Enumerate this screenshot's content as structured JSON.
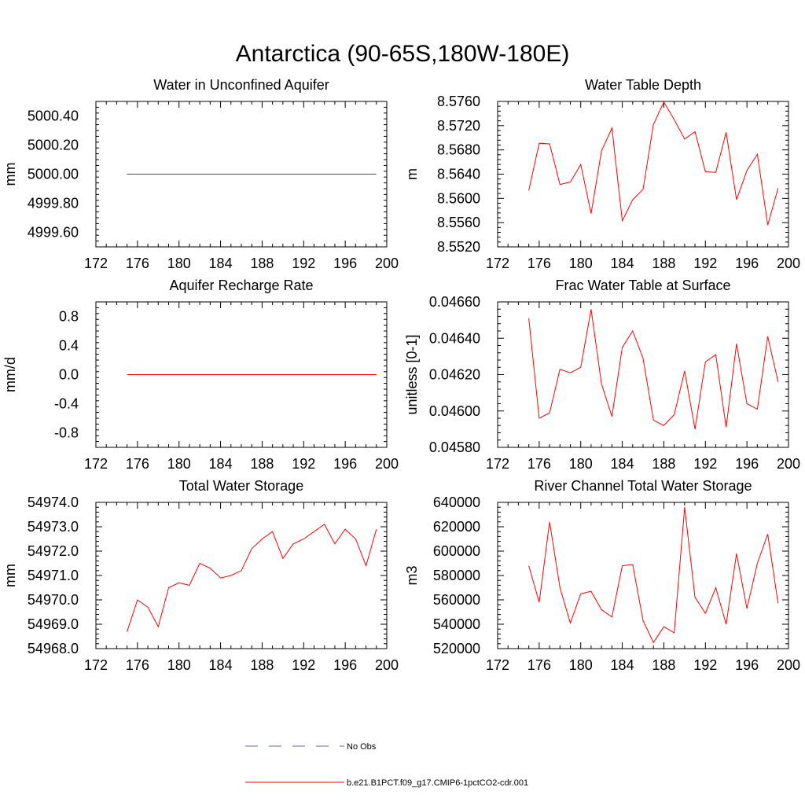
{
  "figure": {
    "title": "Antarctica (90-65S,180W-180E)",
    "legend": [
      {
        "label": "No Obs",
        "color": "#5a6bc0",
        "dash": true
      },
      {
        "label": "b.e21.B1PCT.f09_g17.CMIP6-1pctCO2-cdr.001",
        "color": "#ff0000",
        "dash": false
      }
    ]
  },
  "chart_data": [
    {
      "type": "line",
      "title": "Water in Unconfined Aquifer",
      "xlabel": "",
      "ylabel": "mm",
      "xlim": [
        172,
        200
      ],
      "ylim": [
        4999.5,
        5000.5
      ],
      "xticks": [
        172,
        176,
        180,
        184,
        188,
        192,
        196,
        200
      ],
      "yticks": [
        4999.6,
        4999.8,
        5000.0,
        5000.2,
        5000.4
      ],
      "ytick_labels": [
        "4999.60",
        "4999.80",
        "5000.00",
        "5000.20",
        "5000.40"
      ],
      "x": [
        175,
        176,
        177,
        178,
        179,
        180,
        181,
        182,
        183,
        184,
        185,
        186,
        187,
        188,
        189,
        190,
        191,
        192,
        193,
        194,
        195,
        196,
        197,
        198,
        199
      ],
      "series": [
        {
          "color": "#ff0000",
          "values": [
            5000,
            5000,
            5000,
            5000,
            5000,
            5000,
            5000,
            5000,
            5000,
            5000,
            5000,
            5000,
            5000,
            5000,
            5000,
            5000,
            5000,
            5000,
            5000,
            5000,
            5000,
            5000,
            5000,
            5000,
            5000
          ]
        }
      ]
    },
    {
      "type": "line",
      "title": "Water Table Depth",
      "xlabel": "",
      "ylabel": "m",
      "xlim": [
        172,
        200
      ],
      "ylim": [
        8.552,
        8.576
      ],
      "xticks": [
        172,
        176,
        180,
        184,
        188,
        192,
        196,
        200
      ],
      "yticks": [
        8.552,
        8.556,
        8.56,
        8.564,
        8.568,
        8.572,
        8.576
      ],
      "ytick_labels": [
        "8.5520",
        "8.5560",
        "8.5600",
        "8.5640",
        "8.5680",
        "8.5720",
        "8.5760"
      ],
      "x": [
        175,
        176,
        177,
        178,
        179,
        180,
        181,
        182,
        183,
        184,
        185,
        186,
        187,
        188,
        189,
        190,
        191,
        192,
        193,
        194,
        195,
        196,
        197,
        198,
        199
      ],
      "series": [
        {
          "color": "#ff0000",
          "values": [
            8.5613,
            8.5691,
            8.569,
            8.5623,
            8.5627,
            8.5656,
            8.5575,
            8.5678,
            8.5716,
            8.5563,
            8.5598,
            8.5615,
            8.5722,
            8.5759,
            8.573,
            8.5698,
            8.571,
            8.5644,
            8.5643,
            8.5709,
            8.5598,
            8.5646,
            8.5673,
            8.5556,
            8.5617
          ]
        }
      ]
    },
    {
      "type": "line",
      "title": "Aquifer Recharge Rate",
      "xlabel": "",
      "ylabel": "mm/d",
      "xlim": [
        172,
        200
      ],
      "ylim": [
        -1.0,
        1.0
      ],
      "xticks": [
        172,
        176,
        180,
        184,
        188,
        192,
        196,
        200
      ],
      "yticks": [
        -0.8,
        -0.4,
        0.0,
        0.4,
        0.8
      ],
      "ytick_labels": [
        "-0.8",
        "-0.4",
        "0.0",
        "0.4",
        "0.8"
      ],
      "x": [
        175,
        176,
        177,
        178,
        179,
        180,
        181,
        182,
        183,
        184,
        185,
        186,
        187,
        188,
        189,
        190,
        191,
        192,
        193,
        194,
        195,
        196,
        197,
        198,
        199
      ],
      "series": [
        {
          "color": "#ff0000",
          "values": [
            0,
            0,
            0,
            0,
            0,
            0,
            0,
            0,
            0,
            0,
            0,
            0,
            0,
            0,
            0,
            0,
            0,
            0,
            0,
            0,
            0,
            0,
            0,
            0,
            0
          ]
        }
      ]
    },
    {
      "type": "line",
      "title": "Frac Water Table at Surface",
      "xlabel": "",
      "ylabel": "unitless [0-1]",
      "xlim": [
        172,
        200
      ],
      "ylim": [
        0.0458,
        0.0466
      ],
      "xticks": [
        172,
        176,
        180,
        184,
        188,
        192,
        196,
        200
      ],
      "yticks": [
        0.0458,
        0.046,
        0.0462,
        0.0464,
        0.0466
      ],
      "ytick_labels": [
        "0.04580",
        "0.04600",
        "0.04620",
        "0.04640",
        "0.04660"
      ],
      "x": [
        175,
        176,
        177,
        178,
        179,
        180,
        181,
        182,
        183,
        184,
        185,
        186,
        187,
        188,
        189,
        190,
        191,
        192,
        193,
        194,
        195,
        196,
        197,
        198,
        199
      ],
      "series": [
        {
          "color": "#ff0000",
          "values": [
            0.04651,
            0.04596,
            0.04599,
            0.04623,
            0.04621,
            0.04624,
            0.04656,
            0.04615,
            0.04597,
            0.04635,
            0.04644,
            0.04629,
            0.04595,
            0.04592,
            0.04598,
            0.04622,
            0.0459,
            0.04627,
            0.04631,
            0.04591,
            0.04637,
            0.04604,
            0.04601,
            0.04641,
            0.04616
          ]
        }
      ]
    },
    {
      "type": "line",
      "title": "Total Water Storage",
      "xlabel": "",
      "ylabel": "mm",
      "xlim": [
        172,
        200
      ],
      "ylim": [
        54968.0,
        54974.0
      ],
      "xticks": [
        172,
        176,
        180,
        184,
        188,
        192,
        196,
        200
      ],
      "yticks": [
        54968,
        54969,
        54970,
        54971,
        54972,
        54973,
        54974
      ],
      "ytick_labels": [
        "54968.0",
        "54969.0",
        "54970.0",
        "54971.0",
        "54972.0",
        "54973.0",
        "54974.0"
      ],
      "x": [
        175,
        176,
        177,
        178,
        179,
        180,
        181,
        182,
        183,
        184,
        185,
        186,
        187,
        188,
        189,
        190,
        191,
        192,
        193,
        194,
        195,
        196,
        197,
        198,
        199
      ],
      "series": [
        {
          "color": "#ff0000",
          "values": [
            54968.7,
            54970.0,
            54969.7,
            54968.9,
            54970.5,
            54970.7,
            54970.6,
            54971.5,
            54971.3,
            54970.9,
            54971.0,
            54971.2,
            54972.1,
            54972.5,
            54972.8,
            54971.7,
            54972.3,
            54972.5,
            54972.8,
            54973.1,
            54972.3,
            54972.9,
            54972.5,
            54971.4,
            54972.9
          ]
        }
      ]
    },
    {
      "type": "line",
      "title": "River Channel Total Water Storage",
      "xlabel": "",
      "ylabel": "m3",
      "xlim": [
        172,
        200
      ],
      "ylim": [
        520000,
        640000
      ],
      "xticks": [
        172,
        176,
        180,
        184,
        188,
        192,
        196,
        200
      ],
      "yticks": [
        520000,
        540000,
        560000,
        580000,
        600000,
        620000,
        640000
      ],
      "ytick_labels": [
        "520000",
        "540000",
        "560000",
        "580000",
        "600000",
        "620000",
        "640000"
      ],
      "x": [
        175,
        176,
        177,
        178,
        179,
        180,
        181,
        182,
        183,
        184,
        185,
        186,
        187,
        188,
        189,
        190,
        191,
        192,
        193,
        194,
        195,
        196,
        197,
        198,
        199
      ],
      "series": [
        {
          "color": "#ff0000",
          "values": [
            588000,
            558000,
            624000,
            570000,
            541000,
            565000,
            567000,
            552000,
            546000,
            588000,
            589000,
            543000,
            525000,
            538000,
            533000,
            636000,
            562000,
            549000,
            570000,
            540000,
            598000,
            553000,
            590000,
            614000,
            557000
          ]
        }
      ]
    }
  ]
}
